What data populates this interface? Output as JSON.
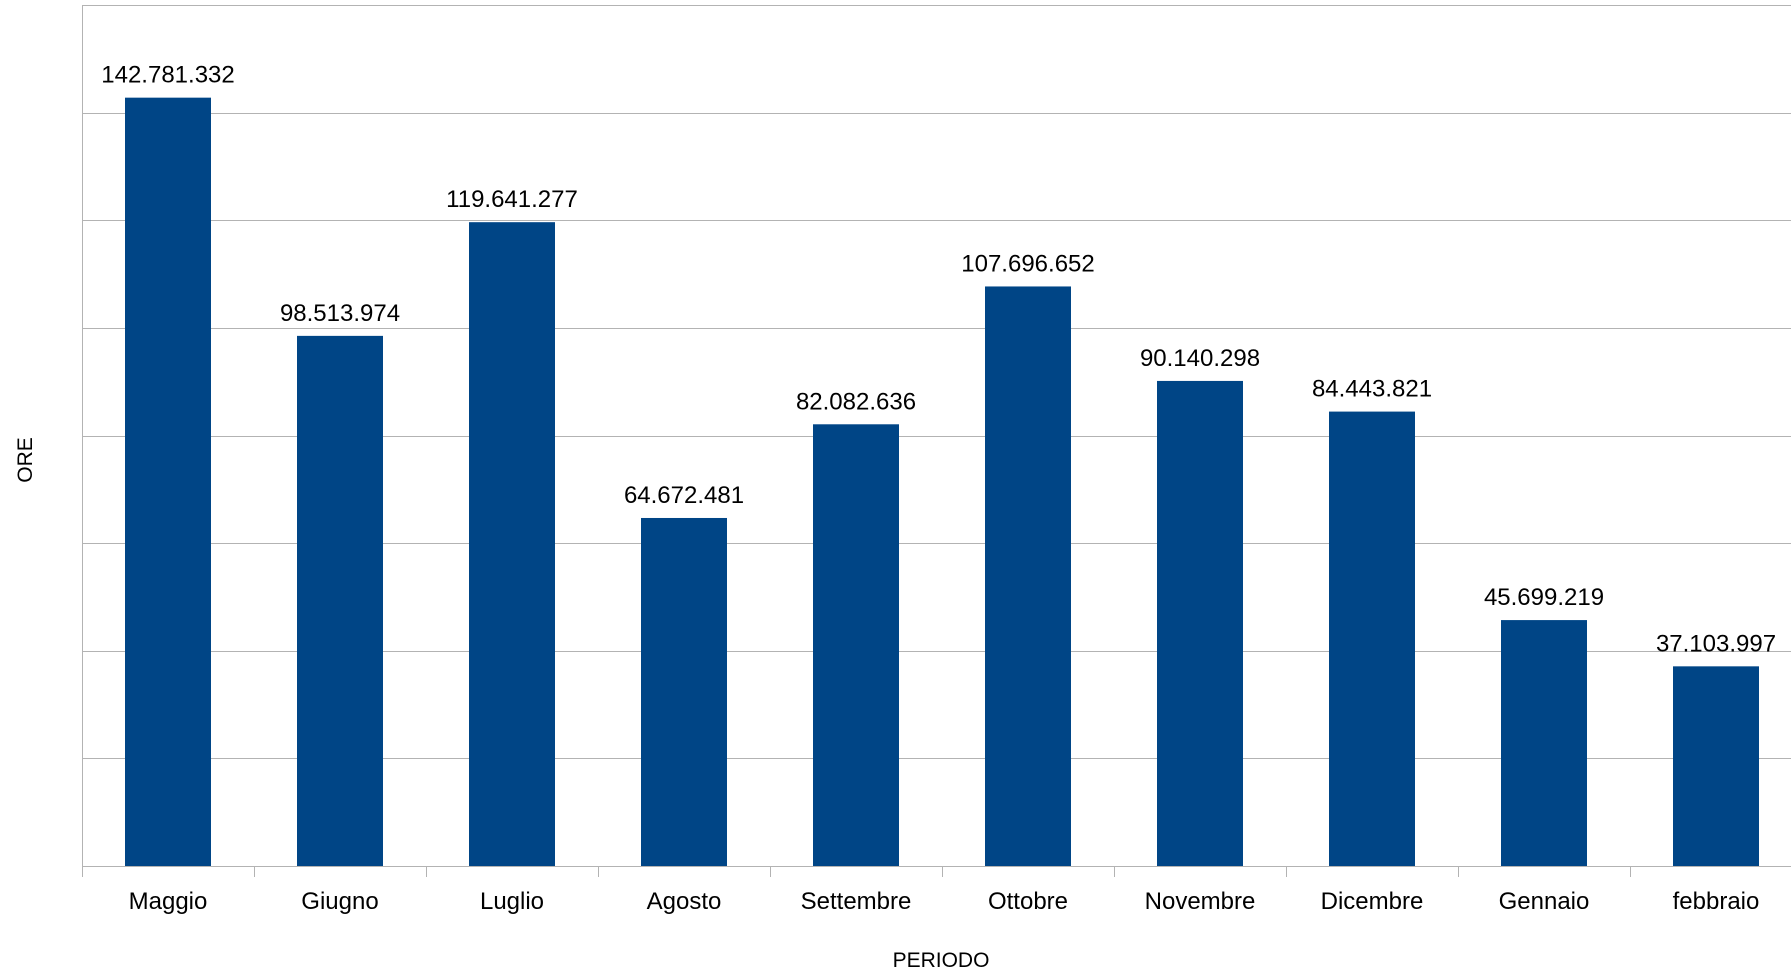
{
  "chart_data": {
    "type": "bar",
    "title": "",
    "xlabel": "PERIODO",
    "ylabel": "ORE",
    "categories": [
      "Maggio",
      "Giugno",
      "Luglio",
      "Agosto",
      "Settembre",
      "Ottobre",
      "Novembre",
      "Dicembre",
      "Gennaio",
      "febbraio"
    ],
    "values": [
      142781332,
      98513974,
      119641277,
      64672481,
      82082636,
      107696652,
      90140298,
      84443821,
      45699219,
      37103997
    ],
    "value_labels": [
      "142.781.332",
      "98.513.974",
      "119.641.277",
      "64.672.481",
      "82.082.636",
      "107.696.652",
      "90.140.298",
      "84.443.821",
      "45.699.219",
      "37.103.997"
    ],
    "ylim": [
      0,
      160000000
    ],
    "grid": true,
    "legend": "none",
    "bar_color": "#004586"
  }
}
